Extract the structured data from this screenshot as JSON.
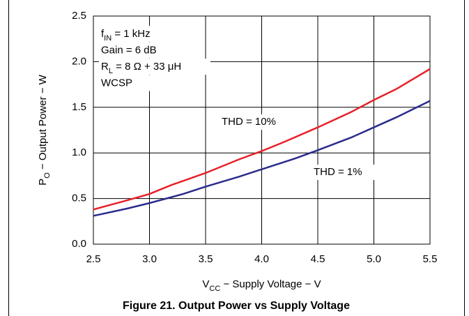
{
  "chart_data": {
    "type": "line",
    "title": "Figure 21. Output Power vs Supply Voltage",
    "xlabel": {
      "main": "V",
      "sub": "CC",
      "rest": " − Supply Voltage − V"
    },
    "ylabel": {
      "main": "P",
      "sub": "O",
      "rest": " − Output Power − W"
    },
    "annotations": [
      {
        "main": "f",
        "sub": "IN",
        "rest": " = 1 kHz"
      },
      {
        "main": "Gain = 6 dB"
      },
      {
        "main": "R",
        "sub": "L",
        "rest": " = 8 Ω + 33 μH"
      },
      {
        "main": "WCSP"
      }
    ],
    "xlim": [
      2.5,
      5.5
    ],
    "xticks": [
      {
        "value": 2.5,
        "label": "2.5"
      },
      {
        "value": 3,
        "label": "3.0"
      },
      {
        "value": 3.5,
        "label": "3.5"
      },
      {
        "value": 4,
        "label": "4.0"
      },
      {
        "value": 4.5,
        "label": "4.5"
      },
      {
        "value": 5,
        "label": "5.0"
      },
      {
        "value": 5.5,
        "label": "5.5"
      }
    ],
    "ylim": [
      0,
      2.5
    ],
    "yticks": [
      {
        "value": 0,
        "label": "0.0"
      },
      {
        "value": 0.5,
        "label": "0.5"
      },
      {
        "value": 1,
        "label": "1.0"
      },
      {
        "value": 1.5,
        "label": "1.5"
      },
      {
        "value": 2,
        "label": "2.0"
      },
      {
        "value": 2.5,
        "label": "2.5"
      }
    ],
    "grid": true,
    "series": [
      {
        "name": "THD = 10%",
        "color": "#e8202a",
        "x": [
          2.5,
          2.8,
          3.0,
          3.2,
          3.5,
          3.8,
          4.0,
          4.2,
          4.5,
          4.8,
          5.0,
          5.2,
          5.5
        ],
        "values": [
          0.38,
          0.48,
          0.55,
          0.65,
          0.78,
          0.93,
          1.02,
          1.12,
          1.28,
          1.45,
          1.58,
          1.7,
          1.92
        ]
      },
      {
        "name": "THD = 1%",
        "color": "#2b2b8c",
        "x": [
          2.5,
          2.8,
          3.0,
          3.3,
          3.5,
          3.8,
          4.0,
          4.3,
          4.5,
          4.8,
          5.0,
          5.2,
          5.5
        ],
        "values": [
          0.31,
          0.39,
          0.45,
          0.55,
          0.63,
          0.74,
          0.82,
          0.94,
          1.03,
          1.17,
          1.28,
          1.39,
          1.57
        ]
      }
    ]
  }
}
